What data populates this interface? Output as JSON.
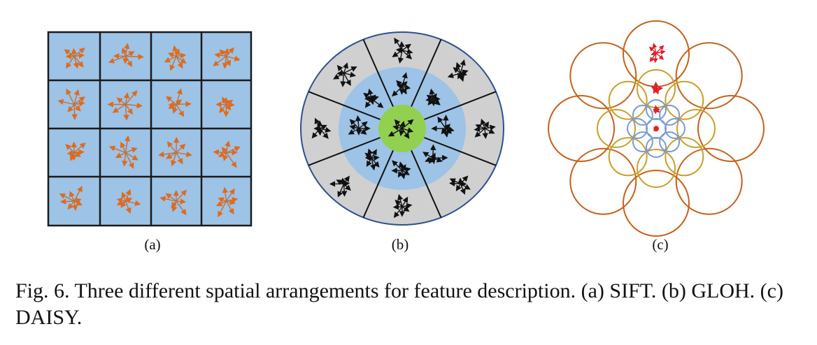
{
  "figure": {
    "labels": {
      "a": "(a)",
      "b": "(b)",
      "c": "(c)"
    },
    "caption": "Fig. 6.   Three different spatial arrangements for feature description. (a) SIFT. (b) GLOH. (c) DAISY.",
    "colors": {
      "sift_cell": "#9dc3e6",
      "sift_grid": "#1a1a1a",
      "sift_arrow": "#e06a1c",
      "sift_arrow_stem": "#b38a6e",
      "gloh_outer": "#d0d0d0",
      "gloh_middle": "#9dc3e6",
      "gloh_center": "#92d050",
      "gloh_border": "#2f4f8f",
      "gloh_arrow": "#111111",
      "daisy_outer": "#c8601a",
      "daisy_middle": "#c8a02a",
      "daisy_inner": "#7a9ad6",
      "daisy_arrow": "#e0202a"
    }
  }
}
